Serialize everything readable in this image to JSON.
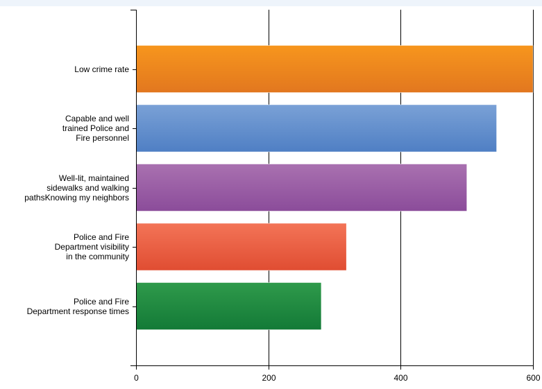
{
  "chart_data": {
    "type": "bar",
    "orientation": "horizontal",
    "categories": [
      "Low crime rate",
      "Capable and well\ntrained Police and\nFire personnel",
      "Well-lit, maintained\nsidewalks and walking\npathsKnowing my neighbors",
      "Police and Fire\nDepartment visibility\nin the community",
      "Police and Fire\nDepartment response times"
    ],
    "values": [
      600,
      545,
      500,
      318,
      280
    ],
    "colors": [
      [
        "#f7961d",
        "#e2771f"
      ],
      [
        "#7aa1d6",
        "#4f7fc4"
      ],
      [
        "#a971b0",
        "#8b4c9a"
      ],
      [
        "#f37457",
        "#e04d32"
      ],
      [
        "#2f9a4b",
        "#137a37"
      ]
    ],
    "xlim": [
      0,
      600
    ],
    "xticks": [
      0,
      200,
      400,
      600
    ],
    "grid": true,
    "title": "",
    "xlabel": "",
    "ylabel": ""
  }
}
